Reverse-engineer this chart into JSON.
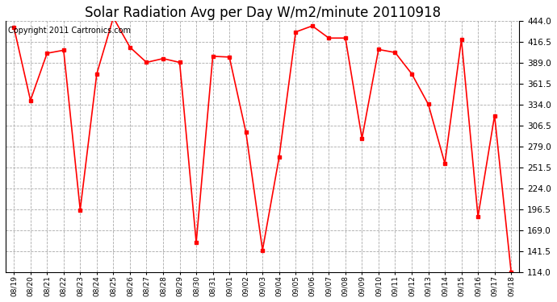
{
  "title": "Solar Radiation Avg per Day W/m2/minute 20110918",
  "copyright_text": "Copyright 2011 Cartronics.com",
  "dates": [
    "08/19",
    "08/20",
    "08/21",
    "08/22",
    "08/23",
    "08/24",
    "08/25",
    "08/26",
    "08/27",
    "08/28",
    "08/29",
    "08/30",
    "08/31",
    "09/01",
    "09/02",
    "09/03",
    "09/04",
    "09/05",
    "09/06",
    "09/07",
    "09/08",
    "09/09",
    "09/10",
    "09/11",
    "09/12",
    "09/13",
    "09/14",
    "09/15",
    "09/16",
    "09/17",
    "09/18"
  ],
  "values": [
    436,
    340,
    402,
    406,
    196,
    375,
    449,
    410,
    390,
    395,
    390,
    153,
    398,
    397,
    298,
    143,
    265,
    430,
    438,
    422,
    422,
    290,
    407,
    403,
    375,
    335,
    257,
    420,
    187,
    320,
    114
  ],
  "line_color": "#ff0000",
  "marker": "s",
  "marker_size": 3,
  "bg_color": "#ffffff",
  "grid_color": "#aaaaaa",
  "ymin": 114.0,
  "ymax": 444.0,
  "yticks": [
    114.0,
    141.5,
    169.0,
    196.5,
    224.0,
    251.5,
    279.0,
    306.5,
    334.0,
    361.5,
    389.0,
    416.5,
    444.0
  ],
  "title_fontsize": 12,
  "copyright_fontsize": 7
}
